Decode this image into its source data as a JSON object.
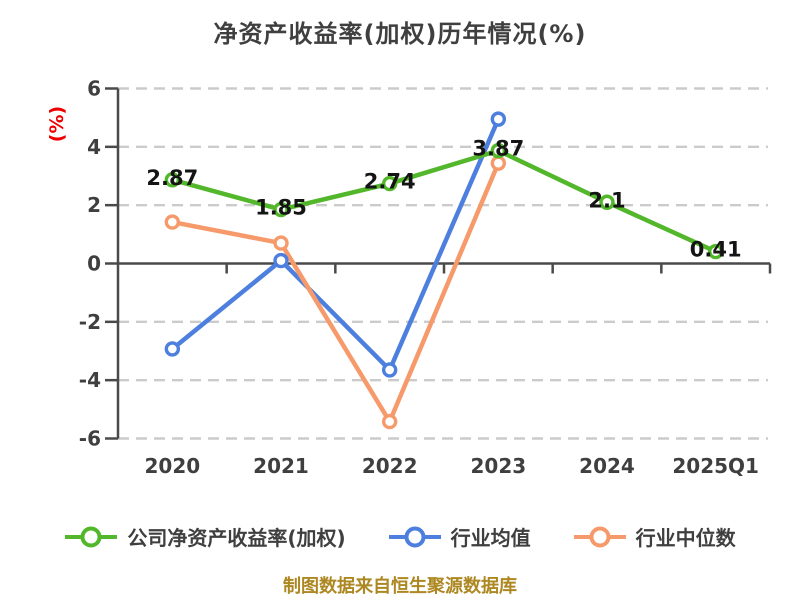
{
  "title": "净资产收益率(加权)历年情况(%)",
  "y_axis_unit": "(%)",
  "footer_note": "制图数据来自恒生聚源数据库",
  "colors": {
    "title_text": "#3F3F3F",
    "axis_text": "#3F3F3F",
    "value_label_text": "#141414",
    "y_unit_label": "#EE0000",
    "grid_line": "#CBCBCB",
    "axis_line": "#4A4A4A",
    "footer_text": "#AD8822",
    "background": "#FFFFFF"
  },
  "chart_data": {
    "type": "line",
    "title": "净资产收益率(加权)历年情况(%)",
    "ylabel": "(%)",
    "categories": [
      "2020",
      "2021",
      "2022",
      "2023",
      "2024",
      "2025Q1"
    ],
    "series": [
      {
        "name": "公司净资产收益率(加权)",
        "color": "#52B72A",
        "marker": "circle-white-fill",
        "values": [
          2.87,
          1.85,
          2.74,
          3.87,
          2.1,
          0.41
        ],
        "data_labels": [
          "2.87",
          "1.85",
          "2.74",
          "3.87",
          "2.1",
          "0.41"
        ]
      },
      {
        "name": "行业均值",
        "color": "#4D7FDE",
        "marker": "circle-white-fill",
        "values": [
          -2.93,
          0.1,
          -3.65,
          4.95
        ],
        "data_labels": null
      },
      {
        "name": "行业中位数",
        "color": "#F79A6B",
        "marker": "circle-white-fill",
        "values": [
          1.42,
          0.7,
          -5.42,
          3.44
        ],
        "data_labels": null
      }
    ],
    "ylim": [
      -6,
      6
    ],
    "yticks": [
      -6,
      -4,
      -2,
      0,
      2,
      4,
      6
    ],
    "grid": "horizontal-dashed",
    "legend_position": "bottom"
  }
}
